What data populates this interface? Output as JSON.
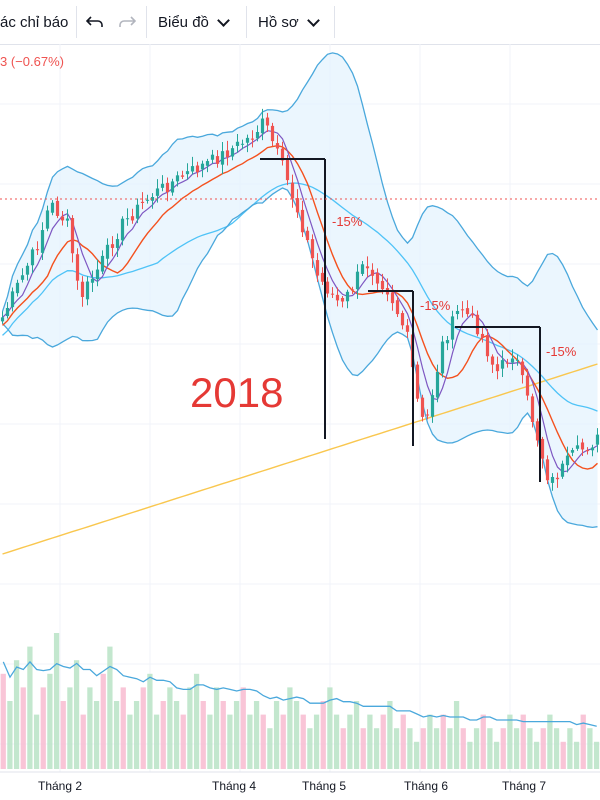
{
  "toolbar": {
    "indicators_label": "ác chỉ báo",
    "undo_icon": "undo-icon",
    "redo_icon": "redo-icon",
    "chart_menu_label": "Biểu đồ",
    "profile_menu_label": "Hồ sơ"
  },
  "price_change_text": "3 (−0.67%)",
  "annotation_year": "2018",
  "colors": {
    "up": "#26a69a",
    "down": "#ef5350",
    "bollinger": "#4aa8dc",
    "bollinger_fill": "#e3f2fd",
    "ma_short": "#7e57c2",
    "ma_mid": "#f4511e",
    "ma_long": "#4fc3f7",
    "ma_200": "#f9c74f",
    "volume_ma": "#4aa8dc"
  },
  "chart_data": {
    "type": "candlestick",
    "x_ticks": [
      "Tháng 2",
      "Tháng 4",
      "Tháng 5",
      "Tháng 6",
      "Tháng 7"
    ],
    "annotations": [
      {
        "label": "-15%"
      },
      {
        "label": "-15%"
      },
      {
        "label": "-15%"
      }
    ],
    "price_path": [
      [
        0.0,
        0.55
      ],
      [
        0.06,
        0.35
      ],
      [
        0.08,
        0.24
      ],
      [
        0.11,
        0.3
      ],
      [
        0.13,
        0.5
      ],
      [
        0.16,
        0.42
      ],
      [
        0.2,
        0.3
      ],
      [
        0.25,
        0.22
      ],
      [
        0.3,
        0.17
      ],
      [
        0.36,
        0.12
      ],
      [
        0.42,
        0.06
      ],
      [
        0.44,
        0.02
      ],
      [
        0.47,
        0.14
      ],
      [
        0.5,
        0.28
      ],
      [
        0.53,
        0.44
      ],
      [
        0.57,
        0.52
      ],
      [
        0.61,
        0.4
      ],
      [
        0.65,
        0.48
      ],
      [
        0.68,
        0.6
      ],
      [
        0.7,
        0.8
      ],
      [
        0.71,
        0.85
      ],
      [
        0.74,
        0.62
      ],
      [
        0.77,
        0.52
      ],
      [
        0.8,
        0.58
      ],
      [
        0.83,
        0.7
      ],
      [
        0.86,
        0.64
      ],
      [
        0.89,
        0.82
      ],
      [
        0.92,
        1.0
      ],
      [
        0.96,
        0.92
      ],
      [
        1.0,
        0.88
      ]
    ],
    "series": [
      {
        "name": "",
        "kind": "bollinger_upper"
      },
      {
        "name": "",
        "kind": "bollinger_lower"
      },
      {
        "name": "",
        "kind": "ma_short"
      },
      {
        "name": "",
        "kind": "ma_mid"
      },
      {
        "name": "",
        "kind": "ma_long"
      },
      {
        "name": "",
        "kind": "ma_200"
      }
    ],
    "volume_relative": [
      0.7,
      0.5,
      0.8,
      0.6,
      0.9,
      0.4,
      0.6,
      0.7,
      1.0,
      0.5,
      0.6,
      0.8,
      0.4,
      0.6,
      0.5,
      0.7,
      0.9,
      0.5,
      0.6,
      0.4,
      0.5,
      0.6,
      0.7,
      0.4,
      0.5,
      0.6,
      0.5,
      0.4,
      0.6,
      0.7,
      0.5,
      0.4,
      0.6,
      0.5,
      0.4,
      0.5,
      0.6,
      0.4,
      0.5,
      0.4,
      0.3,
      0.5,
      0.4,
      0.6,
      0.5,
      0.4,
      0.3,
      0.4,
      0.5,
      0.6,
      0.4,
      0.3,
      0.4,
      0.5,
      0.3,
      0.4,
      0.3,
      0.4,
      0.5,
      0.3,
      0.4,
      0.3,
      0.2,
      0.3,
      0.4,
      0.3,
      0.4,
      0.3,
      0.5,
      0.3,
      0.2,
      0.3,
      0.4,
      0.3,
      0.2,
      0.3,
      0.4,
      0.3,
      0.4,
      0.3,
      0.2,
      0.3,
      0.4,
      0.3,
      0.2,
      0.3,
      0.2,
      0.4,
      0.3,
      0.2
    ],
    "grid": true
  }
}
